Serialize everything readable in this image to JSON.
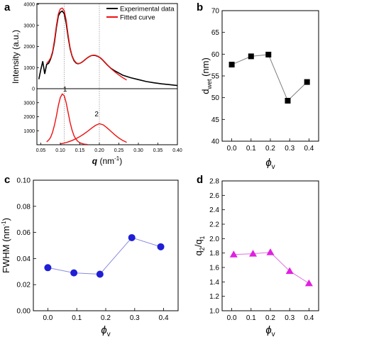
{
  "chart_data": [
    {
      "panel": "a",
      "type": "line",
      "legend": [
        "Experimental data",
        "Fitted curve"
      ],
      "legend_position": "top-right",
      "ylabel": "Intensity (a.u.)",
      "xlabel_main": "q",
      "xlabel_unit": "(nm",
      "xlabel_exp": "-1",
      "xlim": [
        0.04,
        0.4
      ],
      "xticks": [
        "0.05",
        "0.10",
        "0.15",
        "0.20",
        "0.25",
        "0.30",
        "0.35",
        "0.40"
      ],
      "top": {
        "ylim": [
          0,
          4000
        ],
        "yticks": [
          "0",
          "1000",
          "2000",
          "3000",
          "4000"
        ],
        "experimental": {
          "x": [
            0.045,
            0.05,
            0.055,
            0.06,
            0.065,
            0.07,
            0.075,
            0.08,
            0.085,
            0.09,
            0.095,
            0.1,
            0.105,
            0.11,
            0.115,
            0.12,
            0.125,
            0.13,
            0.135,
            0.14,
            0.145,
            0.15,
            0.155,
            0.16,
            0.165,
            0.17,
            0.175,
            0.18,
            0.185,
            0.19,
            0.195,
            0.2,
            0.205,
            0.21,
            0.215,
            0.22,
            0.23,
            0.24,
            0.25,
            0.26,
            0.27,
            0.28,
            0.3,
            0.32,
            0.34,
            0.36,
            0.38,
            0.4
          ],
          "y": [
            450,
            900,
            1300,
            700,
            1150,
            1200,
            1400,
            1700,
            2200,
            2900,
            3450,
            3620,
            3680,
            3550,
            3100,
            2450,
            1900,
            1550,
            1330,
            1220,
            1180,
            1200,
            1250,
            1320,
            1400,
            1470,
            1530,
            1570,
            1580,
            1570,
            1540,
            1490,
            1420,
            1330,
            1230,
            1130,
            960,
            840,
            740,
            640,
            580,
            520,
            430,
            340,
            280,
            230,
            190,
            150
          ]
        },
        "fitted": {
          "x": [
            0.065,
            0.07,
            0.075,
            0.08,
            0.085,
            0.09,
            0.095,
            0.1,
            0.105,
            0.11,
            0.115,
            0.12,
            0.125,
            0.13,
            0.135,
            0.14,
            0.145,
            0.15,
            0.155,
            0.16,
            0.165,
            0.17,
            0.175,
            0.18,
            0.185,
            0.19,
            0.195,
            0.2,
            0.205,
            0.21,
            0.215,
            0.22,
            0.23,
            0.24,
            0.25,
            0.26,
            0.27
          ],
          "y": [
            1200,
            1300,
            1450,
            1750,
            2300,
            3000,
            3550,
            3780,
            3820,
            3700,
            3250,
            2550,
            1950,
            1570,
            1360,
            1240,
            1190,
            1200,
            1250,
            1320,
            1400,
            1470,
            1530,
            1570,
            1590,
            1580,
            1550,
            1500,
            1430,
            1340,
            1240,
            1140,
            950,
            790,
            650,
            520,
            410
          ]
        },
        "guide_x": [
          0.11,
          0.2
        ]
      },
      "bottom": {
        "ylim": [
          0,
          4000
        ],
        "yticks": [
          "1000",
          "2000",
          "3000"
        ],
        "peak_labels": [
          "1",
          "2"
        ],
        "peak1": {
          "x": [
            0.065,
            0.07,
            0.075,
            0.08,
            0.085,
            0.09,
            0.095,
            0.1,
            0.105,
            0.11,
            0.115,
            0.12,
            0.125,
            0.13,
            0.135,
            0.14,
            0.145,
            0.15,
            0.16,
            0.17
          ],
          "y": [
            200,
            330,
            520,
            880,
            1400,
            2050,
            2800,
            3370,
            3620,
            3500,
            3000,
            2300,
            1600,
            1050,
            650,
            400,
            240,
            140,
            50,
            15
          ]
        },
        "peak2": {
          "x": [
            0.1,
            0.11,
            0.12,
            0.13,
            0.14,
            0.15,
            0.16,
            0.17,
            0.18,
            0.19,
            0.2,
            0.21,
            0.22,
            0.23,
            0.24,
            0.25,
            0.26,
            0.27
          ],
          "y": [
            60,
            120,
            200,
            300,
            430,
            580,
            760,
            960,
            1180,
            1380,
            1500,
            1420,
            1200,
            950,
            700,
            480,
            300,
            170
          ]
        }
      }
    },
    {
      "panel": "b",
      "type": "scatter",
      "xlabel": "ϕ",
      "xlabel_sub": "v",
      "ylabel": "d",
      "ylabel_sub": "wet",
      "ylabel_unit": " (nm)",
      "xlim": [
        -0.05,
        0.45
      ],
      "ylim": [
        40,
        70
      ],
      "xticks": [
        "0.0",
        "0.1",
        "0.2",
        "0.3",
        "0.4"
      ],
      "yticks": [
        "40",
        "45",
        "50",
        "55",
        "60",
        "65",
        "70"
      ],
      "marker": "square",
      "color": "#000000",
      "line_color": "#7f7f7f",
      "x": [
        0.0,
        0.1,
        0.19,
        0.29,
        0.39
      ],
      "y": [
        57.6,
        59.5,
        59.9,
        49.3,
        53.6
      ]
    },
    {
      "panel": "c",
      "type": "scatter",
      "xlabel": "ϕ",
      "xlabel_sub": "v",
      "ylabel": "FWHM (nm",
      "ylabel_exp": "-1",
      "ylabel_close": ")",
      "xlim": [
        -0.05,
        0.45
      ],
      "ylim": [
        0.0,
        0.1
      ],
      "xticks": [
        "0.0",
        "0.1",
        "0.2",
        "0.3",
        "0.4"
      ],
      "yticks": [
        "0.00",
        "0.02",
        "0.04",
        "0.06",
        "0.08",
        "0.10"
      ],
      "marker": "circle",
      "color": "#1f1fd6",
      "line_color": "#8a8ae0",
      "x": [
        0.0,
        0.09,
        0.18,
        0.29,
        0.39
      ],
      "y": [
        0.033,
        0.029,
        0.028,
        0.056,
        0.049
      ]
    },
    {
      "panel": "d",
      "type": "scatter",
      "xlabel": "ϕ",
      "xlabel_sub": "v",
      "ylabel": "q",
      "ylabel_sub1": "2",
      "ylabel_mid": "/q",
      "ylabel_sub2": "1",
      "xlim": [
        -0.05,
        0.45
      ],
      "ylim": [
        1.0,
        2.8
      ],
      "xticks": [
        "0.0",
        "0.1",
        "0.2",
        "0.3",
        "0.4"
      ],
      "yticks": [
        "1.0",
        "1.2",
        "1.4",
        "1.6",
        "1.8",
        "2.0",
        "2.2",
        "2.4",
        "2.6",
        "2.8"
      ],
      "marker": "triangle",
      "color": "#e020e0",
      "line_color": "#e070e0",
      "x": [
        0.01,
        0.11,
        0.2,
        0.3,
        0.4
      ],
      "y": [
        1.78,
        1.79,
        1.81,
        1.55,
        1.38
      ]
    }
  ]
}
